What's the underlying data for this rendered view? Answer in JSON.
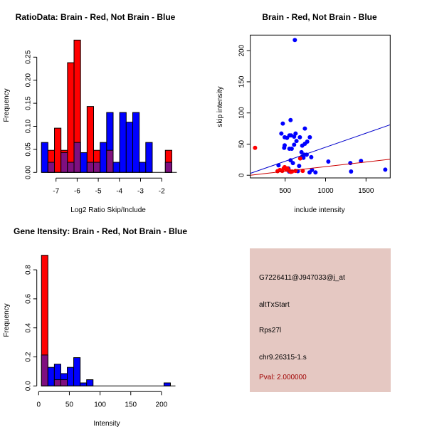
{
  "colors": {
    "red": "#ff0000",
    "blue": "#0000ff",
    "overlap": "#7f0f7f",
    "info_bg": "#e5c8c2",
    "pval": "#a00000",
    "red_line": "#cc0000",
    "blue_line": "#0000cc"
  },
  "chart_data": [
    {
      "type": "bar",
      "title": "RatioData: Brain - Red, Not Brain - Blue",
      "xlabel": "Log2 Ratio Skip/Include",
      "ylabel": "Frequency",
      "xticks": [
        "-7",
        "-6",
        "-5",
        "-4",
        "-3",
        "-2"
      ],
      "xtick_values": [
        -7,
        -6,
        -5,
        -4,
        -3,
        -2
      ],
      "yticks": [
        "0.00",
        "0.05",
        "0.10",
        "0.15",
        "0.20",
        "0.25"
      ],
      "ytick_values": [
        0,
        0.05,
        0.1,
        0.15,
        0.2,
        0.25
      ],
      "bin_start": -7.69,
      "bin_width": 0.3085,
      "series": [
        {
          "name": "Brain",
          "color": "red",
          "values": [
            0,
            0.048,
            0.096,
            0.048,
            0.238,
            0.287,
            0,
            0.143,
            0.048,
            0,
            0.048,
            0,
            0,
            0,
            0,
            0,
            0,
            0,
            0,
            0.048
          ]
        },
        {
          "name": "Not Brain",
          "color": "blue",
          "values": [
            0.065,
            0.022,
            0,
            0.043,
            0.022,
            0.065,
            0.043,
            0.022,
            0.022,
            0.065,
            0.13,
            0.022,
            0.13,
            0.109,
            0.13,
            0.022,
            0.065,
            0,
            0,
            0.022
          ]
        }
      ]
    },
    {
      "type": "scatter",
      "title": "Brain - Red, Not Brain - Blue",
      "xlabel": "include intensity",
      "ylabel": "skip intensity",
      "xlim": [
        69,
        1799
      ],
      "ylim": [
        -4.3,
        225
      ],
      "xticks": [
        "500",
        "1000",
        "1500"
      ],
      "xtick_values": [
        500,
        1000,
        1500
      ],
      "yticks": [
        "0",
        "50",
        "100",
        "150",
        "200"
      ],
      "ytick_values": [
        0,
        50,
        100,
        150,
        200
      ],
      "series": [
        {
          "name": "Not Brain",
          "color": "blue",
          "points": [
            [
              620,
              217
            ],
            [
              567,
              88.5
            ],
            [
              471,
              83
            ],
            [
              453,
              67
            ],
            [
              629,
              67
            ],
            [
              553,
              64
            ],
            [
              573,
              64
            ],
            [
              611,
              62
            ],
            [
              494,
              61
            ],
            [
              523,
              60
            ],
            [
              682,
              61
            ],
            [
              805,
              61
            ],
            [
              640,
              55
            ],
            [
              744,
              75
            ],
            [
              773,
              54
            ],
            [
              744,
              50.5
            ],
            [
              611,
              49
            ],
            [
              711,
              47.5
            ],
            [
              494,
              48
            ],
            [
              488,
              44
            ],
            [
              553,
              42.5
            ],
            [
              581,
              42.5
            ],
            [
              702,
              37
            ],
            [
              737,
              33
            ],
            [
              766,
              33
            ],
            [
              711,
              30
            ],
            [
              726,
              28
            ],
            [
              823,
              29
            ],
            [
              567,
              24
            ],
            [
              596,
              19.5
            ],
            [
              673,
              15
            ],
            [
              418,
              16
            ],
            [
              1034,
              22
            ],
            [
              1306,
              19.5
            ],
            [
              1438,
              23
            ],
            [
              1315,
              6
            ],
            [
              1738,
              9
            ],
            [
              802,
              4.5
            ],
            [
              875,
              4.5
            ],
            [
              832,
              8.4
            ],
            [
              657,
              6.5
            ],
            [
              549,
              6
            ],
            [
              540,
              11
            ]
          ],
          "fit_line": [
            [
              69,
              3
            ],
            [
              1799,
              81
            ]
          ]
        },
        {
          "name": "Brain",
          "color": "red",
          "points": [
            [
              128,
              44
            ],
            [
              406,
              6.5
            ],
            [
              435,
              8.4
            ],
            [
              482,
              11
            ],
            [
              494,
              13
            ],
            [
              517,
              9
            ],
            [
              553,
              7
            ],
            [
              570,
              5.4
            ],
            [
              627,
              7
            ],
            [
              686,
              27
            ],
            [
              717,
              7
            ],
            [
              464,
              7
            ],
            [
              528,
              11
            ],
            [
              585,
              6
            ]
          ],
          "fit_line": [
            [
              69,
              0
            ],
            [
              1799,
              25.7
            ]
          ]
        }
      ]
    },
    {
      "type": "bar",
      "title": "Gene Itensity: Brain - Red, Not Brain - Blue",
      "xlabel": "Intensity",
      "ylabel": "Frequency",
      "xticks": [
        "0",
        "50",
        "100",
        "150",
        "200"
      ],
      "xtick_values": [
        0,
        50,
        100,
        150,
        200
      ],
      "yticks": [
        "0.0",
        "0.2",
        "0.4",
        "0.6",
        "0.8"
      ],
      "ytick_values": [
        0,
        0.2,
        0.4,
        0.6,
        0.8
      ],
      "bin_start": 4.6,
      "bin_width": 10.5,
      "series": [
        {
          "name": "Brain",
          "color": "red",
          "values": [
            0.9,
            0,
            0.043,
            0.043,
            0,
            0,
            0,
            0,
            0,
            0,
            0,
            0,
            0,
            0,
            0,
            0,
            0,
            0,
            0,
            0
          ]
        },
        {
          "name": "Not Brain",
          "color": "blue",
          "values": [
            0.213,
            0.128,
            0.15,
            0.085,
            0.128,
            0.195,
            0.021,
            0.043,
            0,
            0,
            0,
            0,
            0,
            0,
            0,
            0,
            0,
            0,
            0,
            0.021
          ]
        }
      ]
    }
  ],
  "info": {
    "probe_id": "G7226411@J947033@j_at",
    "event_type": "altTxStart",
    "gene": "Rps27l",
    "location": "chr9.26315-1.s",
    "pval": "Pval: 2.000000"
  }
}
